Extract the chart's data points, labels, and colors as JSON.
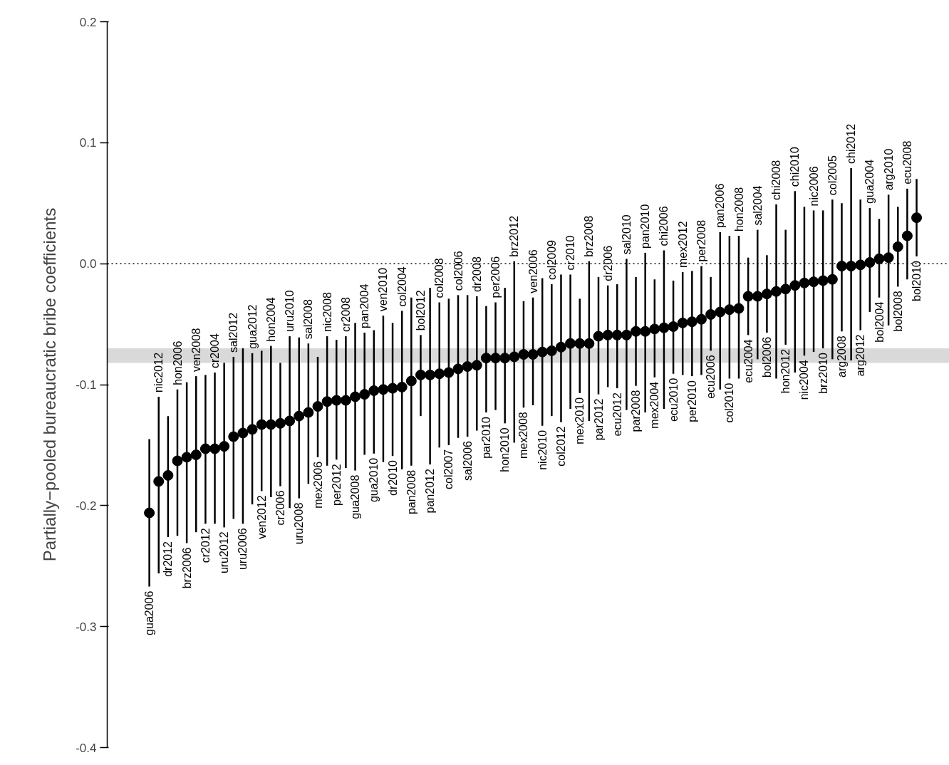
{
  "chart_data": {
    "type": "scatter",
    "ylabel": "Partially−pooled bureaucratic bribe coefficients",
    "categories": [
      "gua2006",
      "nic2012",
      "dr2012",
      "hon2006",
      "brz2006",
      "ven2008",
      "cr2012",
      "cr2004",
      "uru2012",
      "sal2012",
      "uru2006",
      "gua2012",
      "ven2012",
      "hon2004",
      "cr2006",
      "uru2010",
      "uru2008",
      "sal2008",
      "mex2006",
      "nic2008",
      "per2012",
      "cr2008",
      "gua2008",
      "pan2004",
      "gua2010",
      "ven2010",
      "dr2010",
      "col2004",
      "pan2008",
      "bol2012",
      "pan2012",
      "col2008",
      "col2007",
      "col2006",
      "sal2006",
      "dr2008",
      "par2010",
      "per2006",
      "hon2010",
      "brz2012",
      "mex2008",
      "ven2006",
      "nic2010",
      "col2009",
      "col2012",
      "cr2010",
      "mex2010",
      "brz2008",
      "par2012",
      "dr2006",
      "ecu2012",
      "sal2010",
      "par2008",
      "pan2010",
      "mex2004",
      "chi2006",
      "ecu2010",
      "mex2012",
      "per2010",
      "per2008",
      "ecu2006",
      "pan2006",
      "col2010",
      "hon2008",
      "ecu2004",
      "sal2004",
      "bol2006",
      "chi2008",
      "hon2012",
      "chi2010",
      "nic2004",
      "nic2006",
      "brz2010",
      "col2005",
      "arg2008",
      "chi2012",
      "arg2012",
      "gua2004",
      "bol2004",
      "arg2010",
      "bol2008",
      "ecu2008",
      "bol2010"
    ],
    "values": [
      -0.206,
      -0.18,
      -0.175,
      -0.163,
      -0.16,
      -0.158,
      -0.153,
      -0.153,
      -0.151,
      -0.143,
      -0.14,
      -0.137,
      -0.133,
      -0.133,
      -0.132,
      -0.13,
      -0.126,
      -0.123,
      -0.118,
      -0.114,
      -0.113,
      -0.113,
      -0.11,
      -0.108,
      -0.105,
      -0.104,
      -0.103,
      -0.102,
      -0.097,
      -0.092,
      -0.092,
      -0.091,
      -0.09,
      -0.087,
      -0.085,
      -0.084,
      -0.078,
      -0.078,
      -0.078,
      -0.077,
      -0.075,
      -0.075,
      -0.073,
      -0.072,
      -0.069,
      -0.066,
      -0.066,
      -0.066,
      -0.06,
      -0.059,
      -0.059,
      -0.059,
      -0.056,
      -0.056,
      -0.054,
      -0.053,
      -0.052,
      -0.049,
      -0.048,
      -0.046,
      -0.042,
      -0.04,
      -0.038,
      -0.037,
      -0.027,
      -0.027,
      -0.025,
      -0.023,
      -0.021,
      -0.018,
      -0.016,
      -0.015,
      -0.014,
      -0.013,
      -0.002,
      -0.002,
      -0.001,
      0.001,
      0.004,
      0.005,
      0.014,
      0.023,
      0.038
    ],
    "errors": [
      [
        -0.267,
        -0.145
      ],
      [
        -0.256,
        -0.11
      ],
      [
        -0.226,
        -0.126
      ],
      [
        -0.225,
        -0.104
      ],
      [
        -0.231,
        -0.098
      ],
      [
        -0.222,
        -0.093
      ],
      [
        -0.215,
        -0.092
      ],
      [
        -0.215,
        -0.09
      ],
      [
        -0.218,
        -0.082
      ],
      [
        -0.211,
        -0.077
      ],
      [
        -0.215,
        -0.07
      ],
      [
        -0.199,
        -0.074
      ],
      [
        -0.188,
        -0.072
      ],
      [
        -0.193,
        -0.068
      ],
      [
        -0.184,
        -0.082
      ],
      [
        -0.202,
        -0.06
      ],
      [
        -0.194,
        -0.061
      ],
      [
        -0.182,
        -0.066
      ],
      [
        -0.16,
        -0.077
      ],
      [
        -0.167,
        -0.06
      ],
      [
        -0.162,
        -0.063
      ],
      [
        -0.169,
        -0.06
      ],
      [
        -0.171,
        -0.049
      ],
      [
        -0.158,
        -0.057
      ],
      [
        -0.157,
        -0.055
      ],
      [
        -0.164,
        -0.043
      ],
      [
        -0.159,
        -0.049
      ],
      [
        -0.17,
        -0.039
      ],
      [
        -0.167,
        -0.028
      ],
      [
        -0.126,
        -0.059
      ],
      [
        -0.166,
        -0.02
      ],
      [
        -0.152,
        -0.032
      ],
      [
        -0.15,
        -0.029
      ],
      [
        -0.144,
        -0.026
      ],
      [
        -0.143,
        -0.026
      ],
      [
        -0.138,
        -0.027
      ],
      [
        -0.123,
        -0.035
      ],
      [
        -0.121,
        -0.032
      ],
      [
        -0.132,
        -0.02
      ],
      [
        -0.148,
        0.002
      ],
      [
        -0.119,
        -0.031
      ],
      [
        -0.117,
        -0.028
      ],
      [
        -0.134,
        -0.012
      ],
      [
        -0.126,
        -0.017
      ],
      [
        -0.131,
        -0.009
      ],
      [
        -0.12,
        -0.009
      ],
      [
        -0.107,
        -0.029
      ],
      [
        -0.13,
        0.002
      ],
      [
        -0.108,
        -0.011
      ],
      [
        -0.102,
        -0.018
      ],
      [
        -0.103,
        -0.017
      ],
      [
        -0.121,
        0.004
      ],
      [
        -0.101,
        -0.011
      ],
      [
        -0.123,
        0.009
      ],
      [
        -0.094,
        -0.013
      ],
      [
        -0.12,
        0.011
      ],
      [
        -0.091,
        -0.014
      ],
      [
        -0.092,
        -0.007
      ],
      [
        -0.093,
        -0.006
      ],
      [
        -0.092,
        -0.002
      ],
      [
        -0.072,
        -0.011
      ],
      [
        -0.104,
        0.026
      ],
      [
        -0.095,
        0.023
      ],
      [
        -0.095,
        0.023
      ],
      [
        -0.059,
        0.005
      ],
      [
        -0.079,
        0.028
      ],
      [
        -0.057,
        0.007
      ],
      [
        -0.095,
        0.049
      ],
      [
        -0.067,
        0.028
      ],
      [
        -0.09,
        0.06
      ],
      [
        -0.076,
        0.047
      ],
      [
        -0.073,
        0.044
      ],
      [
        -0.07,
        0.044
      ],
      [
        -0.079,
        0.053
      ],
      [
        -0.056,
        0.05
      ],
      [
        -0.08,
        0.079
      ],
      [
        -0.055,
        0.053
      ],
      [
        -0.04,
        0.046
      ],
      [
        -0.028,
        0.037
      ],
      [
        -0.051,
        0.057
      ],
      [
        -0.019,
        0.047
      ],
      [
        -0.013,
        0.062
      ],
      [
        0.006,
        0.07
      ]
    ],
    "color": "#000000",
    "marker": "circle",
    "ylim": [
      -0.4,
      0.2
    ],
    "yticks": [
      -0.4,
      -0.3,
      -0.2,
      -0.1,
      {
        "value": 0,
        "label": "0.0"
      },
      0.1,
      0.2
    ],
    "ref_lines": [
      {
        "axis": "y",
        "value": 0,
        "color": "#000000",
        "line_style": "dotted"
      }
    ],
    "bands": [
      {
        "axis": "y",
        "from": -0.082,
        "to": -0.07,
        "color": "#d9d9d9"
      }
    ],
    "grid": false
  }
}
